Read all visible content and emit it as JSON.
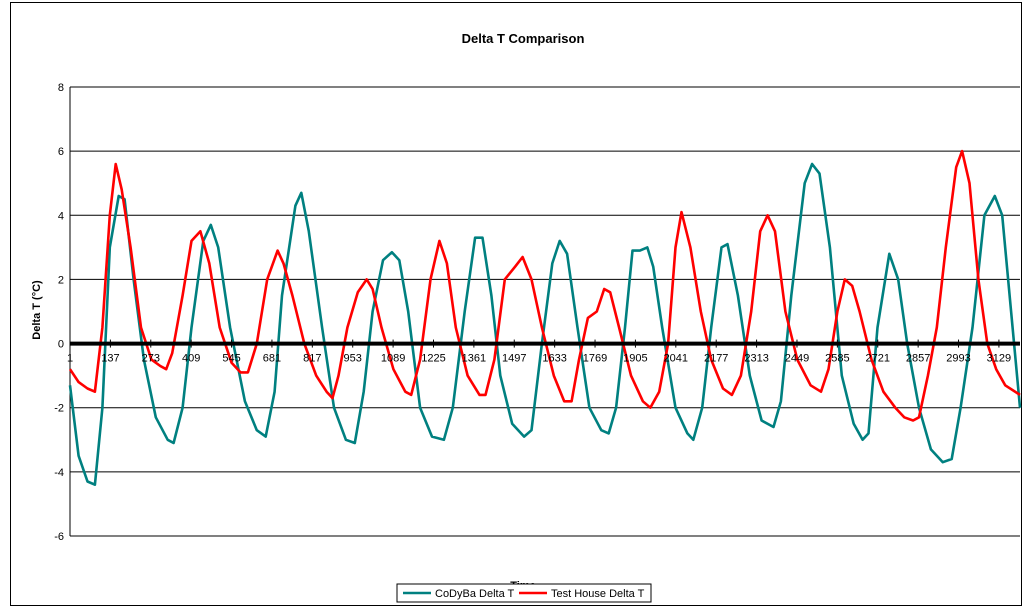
{
  "chart_data": {
    "type": "line",
    "title": "Delta T Comparison",
    "xlabel": "Time",
    "ylabel": "Delta T (°C)",
    "xlim": [
      1,
      3200
    ],
    "ylim": [
      -6,
      8
    ],
    "yticks": [
      -6,
      -4,
      -2,
      0,
      2,
      4,
      6,
      8
    ],
    "xticks": [
      1,
      137,
      273,
      409,
      545,
      681,
      817,
      953,
      1089,
      1225,
      1361,
      1497,
      1633,
      1769,
      1905,
      2041,
      2177,
      2313,
      2449,
      2585,
      2721,
      2857,
      2993,
      3129
    ],
    "grid": "horizontal",
    "legend": "bottom",
    "series": [
      {
        "name": "CoDyBa Delta T",
        "color": "#008080",
        "points": [
          [
            1,
            -1.3
          ],
          [
            30,
            -3.5
          ],
          [
            60,
            -4.3
          ],
          [
            85,
            -4.4
          ],
          [
            110,
            -2.0
          ],
          [
            135,
            3.0
          ],
          [
            165,
            4.6
          ],
          [
            185,
            4.5
          ],
          [
            215,
            2.0
          ],
          [
            250,
            -0.5
          ],
          [
            290,
            -2.3
          ],
          [
            330,
            -3.0
          ],
          [
            350,
            -3.1
          ],
          [
            380,
            -2.0
          ],
          [
            410,
            0.5
          ],
          [
            450,
            3.2
          ],
          [
            475,
            3.7
          ],
          [
            500,
            3.0
          ],
          [
            540,
            0.5
          ],
          [
            590,
            -1.8
          ],
          [
            630,
            -2.7
          ],
          [
            660,
            -2.9
          ],
          [
            690,
            -1.5
          ],
          [
            715,
            1.5
          ],
          [
            760,
            4.3
          ],
          [
            780,
            4.7
          ],
          [
            805,
            3.5
          ],
          [
            850,
            0.5
          ],
          [
            890,
            -2.0
          ],
          [
            930,
            -3.0
          ],
          [
            960,
            -3.1
          ],
          [
            990,
            -1.5
          ],
          [
            1020,
            1.0
          ],
          [
            1055,
            2.6
          ],
          [
            1085,
            2.85
          ],
          [
            1110,
            2.6
          ],
          [
            1140,
            1.0
          ],
          [
            1180,
            -2.0
          ],
          [
            1220,
            -2.9
          ],
          [
            1260,
            -3.0
          ],
          [
            1290,
            -2.0
          ],
          [
            1330,
            1.0
          ],
          [
            1365,
            3.3
          ],
          [
            1390,
            3.3
          ],
          [
            1420,
            1.5
          ],
          [
            1450,
            -1.0
          ],
          [
            1490,
            -2.5
          ],
          [
            1530,
            -2.9
          ],
          [
            1555,
            -2.7
          ],
          [
            1590,
            0.0
          ],
          [
            1625,
            2.5
          ],
          [
            1650,
            3.2
          ],
          [
            1675,
            2.8
          ],
          [
            1710,
            0.5
          ],
          [
            1750,
            -2.0
          ],
          [
            1790,
            -2.7
          ],
          [
            1815,
            -2.8
          ],
          [
            1840,
            -2.0
          ],
          [
            1870,
            0.5
          ],
          [
            1895,
            2.9
          ],
          [
            1920,
            2.9
          ],
          [
            1945,
            3.0
          ],
          [
            1965,
            2.4
          ],
          [
            1995,
            0.5
          ],
          [
            2040,
            -2.0
          ],
          [
            2080,
            -2.8
          ],
          [
            2100,
            -3.0
          ],
          [
            2130,
            -2.0
          ],
          [
            2160,
            0.5
          ],
          [
            2195,
            3.0
          ],
          [
            2215,
            3.1
          ],
          [
            2250,
            1.5
          ],
          [
            2290,
            -1.0
          ],
          [
            2330,
            -2.4
          ],
          [
            2370,
            -2.6
          ],
          [
            2395,
            -1.8
          ],
          [
            2430,
            1.5
          ],
          [
            2475,
            5.0
          ],
          [
            2500,
            5.6
          ],
          [
            2525,
            5.3
          ],
          [
            2560,
            3.0
          ],
          [
            2600,
            -1.0
          ],
          [
            2640,
            -2.5
          ],
          [
            2670,
            -3.0
          ],
          [
            2690,
            -2.8
          ],
          [
            2720,
            0.5
          ],
          [
            2760,
            2.8
          ],
          [
            2790,
            2.0
          ],
          [
            2820,
            0.0
          ],
          [
            2860,
            -2.0
          ],
          [
            2900,
            -3.3
          ],
          [
            2940,
            -3.7
          ],
          [
            2970,
            -3.6
          ],
          [
            3000,
            -2.0
          ],
          [
            3040,
            0.5
          ],
          [
            3080,
            4.0
          ],
          [
            3115,
            4.6
          ],
          [
            3140,
            4.0
          ],
          [
            3170,
            1.0
          ],
          [
            3200,
            -2.0
          ]
        ]
      },
      {
        "name": "Test House Delta T",
        "color": "#ff0000",
        "points": [
          [
            1,
            -0.8
          ],
          [
            30,
            -1.2
          ],
          [
            60,
            -1.4
          ],
          [
            85,
            -1.5
          ],
          [
            110,
            0.5
          ],
          [
            135,
            4.0
          ],
          [
            155,
            5.6
          ],
          [
            175,
            4.8
          ],
          [
            205,
            3.0
          ],
          [
            240,
            0.5
          ],
          [
            275,
            -0.5
          ],
          [
            305,
            -0.7
          ],
          [
            325,
            -0.8
          ],
          [
            345,
            -0.3
          ],
          [
            380,
            1.5
          ],
          [
            410,
            3.2
          ],
          [
            440,
            3.5
          ],
          [
            470,
            2.5
          ],
          [
            505,
            0.5
          ],
          [
            545,
            -0.6
          ],
          [
            575,
            -0.9
          ],
          [
            600,
            -0.9
          ],
          [
            630,
            0.0
          ],
          [
            665,
            2.0
          ],
          [
            700,
            2.9
          ],
          [
            720,
            2.5
          ],
          [
            750,
            1.5
          ],
          [
            790,
            0.0
          ],
          [
            830,
            -1.0
          ],
          [
            865,
            -1.5
          ],
          [
            885,
            -1.7
          ],
          [
            905,
            -1.0
          ],
          [
            935,
            0.5
          ],
          [
            970,
            1.6
          ],
          [
            1000,
            2.0
          ],
          [
            1020,
            1.7
          ],
          [
            1050,
            0.5
          ],
          [
            1090,
            -0.8
          ],
          [
            1130,
            -1.5
          ],
          [
            1150,
            -1.6
          ],
          [
            1180,
            -0.5
          ],
          [
            1215,
            2.0
          ],
          [
            1245,
            3.2
          ],
          [
            1270,
            2.5
          ],
          [
            1300,
            0.5
          ],
          [
            1340,
            -1.0
          ],
          [
            1380,
            -1.6
          ],
          [
            1400,
            -1.6
          ],
          [
            1430,
            -0.5
          ],
          [
            1465,
            2.0
          ],
          [
            1500,
            2.4
          ],
          [
            1525,
            2.7
          ],
          [
            1555,
            2.0
          ],
          [
            1590,
            0.5
          ],
          [
            1630,
            -1.0
          ],
          [
            1665,
            -1.8
          ],
          [
            1690,
            -1.8
          ],
          [
            1715,
            -0.5
          ],
          [
            1745,
            0.8
          ],
          [
            1775,
            1.0
          ],
          [
            1800,
            1.7
          ],
          [
            1820,
            1.6
          ],
          [
            1850,
            0.5
          ],
          [
            1890,
            -1.0
          ],
          [
            1930,
            -1.8
          ],
          [
            1955,
            -2.0
          ],
          [
            1985,
            -1.5
          ],
          [
            2015,
            0.0
          ],
          [
            2040,
            3.0
          ],
          [
            2060,
            4.1
          ],
          [
            2090,
            3.0
          ],
          [
            2125,
            1.0
          ],
          [
            2160,
            -0.5
          ],
          [
            2200,
            -1.4
          ],
          [
            2230,
            -1.6
          ],
          [
            2260,
            -1.0
          ],
          [
            2295,
            1.0
          ],
          [
            2325,
            3.5
          ],
          [
            2350,
            4.0
          ],
          [
            2375,
            3.5
          ],
          [
            2410,
            1.0
          ],
          [
            2450,
            -0.5
          ],
          [
            2495,
            -1.3
          ],
          [
            2530,
            -1.5
          ],
          [
            2555,
            -0.8
          ],
          [
            2585,
            1.0
          ],
          [
            2610,
            2.0
          ],
          [
            2635,
            1.8
          ],
          [
            2660,
            1.0
          ],
          [
            2700,
            -0.5
          ],
          [
            2740,
            -1.5
          ],
          [
            2780,
            -2.0
          ],
          [
            2810,
            -2.3
          ],
          [
            2840,
            -2.4
          ],
          [
            2860,
            -2.3
          ],
          [
            2890,
            -1.0
          ],
          [
            2920,
            0.5
          ],
          [
            2950,
            3.0
          ],
          [
            2985,
            5.5
          ],
          [
            3005,
            6.0
          ],
          [
            3030,
            5.0
          ],
          [
            3060,
            2.0
          ],
          [
            3090,
            0.0
          ],
          [
            3120,
            -0.8
          ],
          [
            3150,
            -1.3
          ],
          [
            3200,
            -1.6
          ]
        ]
      }
    ]
  }
}
